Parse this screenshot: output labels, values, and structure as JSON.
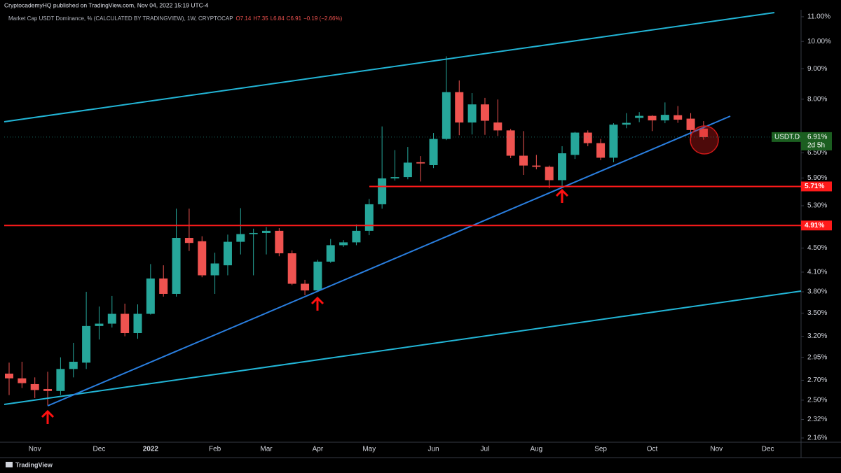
{
  "header": {
    "publisher": "CryptocademyHQ published on TradingView.com, Nov 04, 2022 15:19 UTC-4"
  },
  "footer": {
    "brand": "TradingView"
  },
  "chart_data": {
    "type": "candlestick",
    "title": "Market Cap USDT Dominance, % (CALCULATED BY TRADINGVIEW), 1W, CRYPTOCAP",
    "legend_values": [
      "O7.14",
      "H7.35",
      "L6.84",
      "C6.91",
      "−0.19 (−2.66%)"
    ],
    "categories": [
      null,
      null,
      "Nov",
      null,
      null,
      null,
      null,
      "Dec",
      null,
      null,
      null,
      "2022",
      null,
      null,
      null,
      null,
      "Feb",
      null,
      null,
      null,
      "Mar",
      null,
      null,
      null,
      "Apr",
      null,
      null,
      null,
      "May",
      null,
      null,
      null,
      null,
      "Jun",
      null,
      null,
      null,
      "Jul",
      null,
      null,
      null,
      "Aug",
      null,
      null,
      null,
      null,
      "Sep",
      null,
      null,
      null,
      "Oct",
      null,
      null,
      null,
      null,
      "Nov",
      null,
      null,
      null,
      "Dec"
    ],
    "open": [
      2.77,
      2.72,
      2.66,
      2.61,
      2.59,
      2.82,
      2.89,
      3.33,
      3.36,
      3.49,
      3.24,
      3.49,
      4.0,
      3.77,
      4.68,
      4.62,
      4.05,
      4.21,
      4.61,
      4.75,
      4.77,
      4.81,
      4.41,
      3.92,
      3.82,
      4.27,
      4.55,
      4.6,
      4.81,
      5.33,
      5.89,
      5.92,
      6.27,
      6.2,
      6.86,
      8.22,
      7.31,
      7.84,
      7.31,
      7.09,
      6.43,
      6.19,
      6.16,
      5.85,
      6.45,
      7.03,
      6.75,
      6.38,
      7.25,
      7.44,
      7.5,
      7.37,
      7.52,
      7.42,
      7.14,
      null,
      null,
      null,
      null,
      null
    ],
    "high": [
      2.89,
      2.9,
      2.73,
      2.79,
      2.95,
      3.12,
      3.8,
      3.59,
      3.74,
      3.63,
      3.62,
      4.23,
      4.21,
      5.24,
      5.24,
      4.71,
      4.42,
      4.74,
      5.25,
      4.85,
      4.88,
      4.86,
      4.46,
      3.98,
      4.3,
      4.66,
      4.64,
      4.93,
      5.44,
      7.2,
      6.57,
      6.65,
      6.42,
      7.02,
      9.44,
      8.6,
      8.19,
      8.04,
      7.99,
      7.13,
      7.07,
      6.45,
      6.19,
      6.67,
      7.05,
      7.09,
      6.86,
      7.29,
      7.58,
      7.61,
      7.52,
      7.9,
      7.79,
      7.58,
      7.35,
      null,
      null,
      null,
      null,
      null
    ],
    "low": [
      2.55,
      2.62,
      2.52,
      2.45,
      2.55,
      2.73,
      2.82,
      3.16,
      3.31,
      3.2,
      3.17,
      3.48,
      3.73,
      3.73,
      4.45,
      4.02,
      3.77,
      4.05,
      4.39,
      4.05,
      4.39,
      4.36,
      3.9,
      3.75,
      3.8,
      4.25,
      4.52,
      4.55,
      4.73,
      5.24,
      5.84,
      5.87,
      5.82,
      6.13,
      6.83,
      6.96,
      6.98,
      6.97,
      6.94,
      6.37,
      5.97,
      6.1,
      5.67,
      5.69,
      6.35,
      6.67,
      6.32,
      6.27,
      7.15,
      7.32,
      7.07,
      7.29,
      7.3,
      6.77,
      6.84,
      null,
      null,
      null,
      null,
      null
    ],
    "close": [
      2.72,
      2.67,
      2.6,
      2.59,
      2.82,
      2.9,
      3.33,
      3.36,
      3.49,
      3.24,
      3.49,
      4.0,
      3.77,
      4.68,
      4.59,
      4.05,
      4.24,
      4.61,
      4.75,
      4.77,
      4.81,
      4.41,
      3.92,
      3.82,
      4.27,
      4.55,
      4.6,
      4.81,
      5.33,
      5.89,
      5.92,
      6.26,
      6.24,
      6.86,
      8.22,
      7.31,
      7.84,
      7.36,
      7.09,
      6.43,
      6.19,
      6.16,
      5.85,
      6.49,
      7.03,
      6.75,
      6.38,
      7.25,
      7.3,
      7.5,
      7.37,
      7.53,
      7.39,
      7.1,
      6.91,
      null,
      null,
      null,
      null,
      null
    ],
    "up_color": "#26a69a",
    "down_color": "#ef5350",
    "log_scale": true,
    "ylim": [
      2.125,
      11.3
    ],
    "yticks": [
      {
        "value": 11,
        "label": "11.00%"
      },
      {
        "value": 10,
        "label": "10.00%"
      },
      {
        "value": 9,
        "label": "9.00%"
      },
      {
        "value": 8,
        "label": "8.00%"
      },
      {
        "value": 6.5,
        "label": "6.50%"
      },
      {
        "value": 5.9,
        "label": "5.90%"
      },
      {
        "value": 5.3,
        "label": "5.30%"
      },
      {
        "value": 4.5,
        "label": "4.50%"
      },
      {
        "value": 4.1,
        "label": "4.10%"
      },
      {
        "value": 3.8,
        "label": "3.80%"
      },
      {
        "value": 3.5,
        "label": "3.50%"
      },
      {
        "value": 3.2,
        "label": "3.20%"
      },
      {
        "value": 2.95,
        "label": "2.95%"
      },
      {
        "value": 2.7,
        "label": "2.70%"
      },
      {
        "value": 2.5,
        "label": "2.50%"
      },
      {
        "value": 2.32,
        "label": "2.32%"
      },
      {
        "value": 2.16,
        "label": "2.16%"
      }
    ],
    "hlines": [
      {
        "value": 5.71,
        "label": "5.71%",
        "color": "#ff1a1a"
      },
      {
        "value": 4.91,
        "label": "4.91%",
        "color": "#ff1a1a"
      }
    ],
    "last_price": {
      "value": 6.91,
      "label": "6.91%",
      "symbol": "USDT.D",
      "countdown": "2d 5h",
      "color": "#1b5e20"
    }
  }
}
